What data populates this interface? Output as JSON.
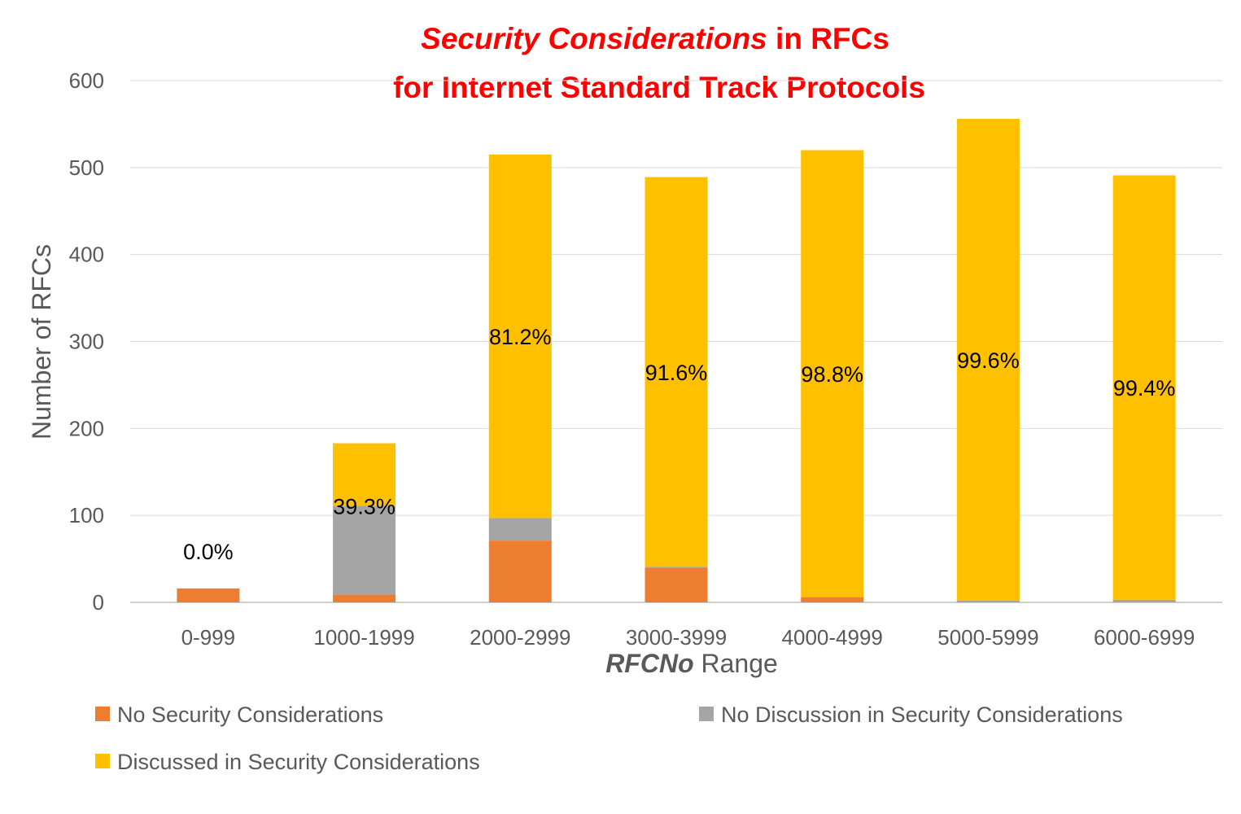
{
  "chart_data": {
    "type": "bar",
    "stacked": true,
    "title_line1_italic": "Security Considerations",
    "title_line1_rest": " in RFCs",
    "title_line2": "for Internet Standard Track Protocols",
    "xlabel_bold": "RFCNo",
    "xlabel_rest": " Range",
    "ylabel": "Number of RFCs",
    "ylim": [
      0,
      600
    ],
    "yticks": [
      "0",
      "100",
      "200",
      "300",
      "400",
      "500",
      "600"
    ],
    "categories": [
      "0-999",
      "1000-1999",
      "2000-2999",
      "3000-3999",
      "4000-4999",
      "5000-5999",
      "6000-6999"
    ],
    "series": [
      {
        "name": "No Security Considerations",
        "color": "#ed7d31",
        "values": [
          16,
          9,
          71,
          40,
          6,
          0,
          0
        ]
      },
      {
        "name": "No Discussion in Security Considerations",
        "color": "#a5a5a5",
        "values": [
          0,
          102,
          26,
          1,
          0,
          2,
          3
        ]
      },
      {
        "name": "Discussed in Security Considerations",
        "color": "#ffc000",
        "values": [
          0,
          72,
          418,
          448,
          514,
          554,
          488
        ]
      }
    ],
    "data_labels": [
      "0.0%",
      "39.3%",
      "81.2%",
      "91.6%",
      "98.8%",
      "99.6%",
      "99.4%"
    ],
    "gridlines": true,
    "legend_position": "bottom"
  }
}
